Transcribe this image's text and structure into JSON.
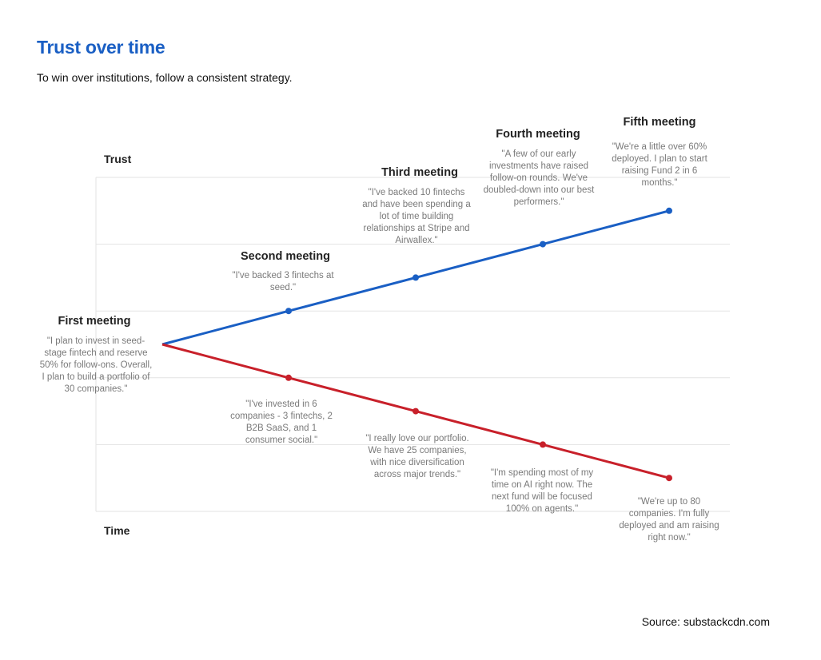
{
  "title": "Trust over time",
  "subtitle": "To win over institutions, follow a consistent strategy.",
  "axes": {
    "y_label": "Trust",
    "x_label": "Time"
  },
  "start_point": {
    "title": "First meeting",
    "quote": "\"I plan to invest in seed-stage fintech and reserve 50% for follow-ons. Overall, I plan to build a portfolio of 30 companies.\""
  },
  "meetings": [
    {
      "title": "Second meeting",
      "good_quote": "\"I've backed 3 fintechs at seed.\"",
      "bad_quote": "\"I've invested in 6 companies - 3 fintechs, 2 B2B SaaS, and 1 consumer social.\""
    },
    {
      "title": "Third meeting",
      "good_quote": "\"I've backed 10 fintechs and have been spending a lot of time building relationships at Stripe and Airwallex.\"",
      "bad_quote": "\"I really love our portfolio. We have 25 companies, with nice diversification across major trends.\""
    },
    {
      "title": "Fourth meeting",
      "good_quote": "\"A few of our early investments have raised follow-on rounds. We've doubled-down into our best performers.\"",
      "bad_quote": "\"I'm spending most of my time on AI right now. The next fund will be focused 100% on agents.\""
    },
    {
      "title": "Fifth meeting",
      "good_quote": "\"We're a little over 60% deployed. I plan to start raising Fund 2 in 6 months.\"",
      "bad_quote": "\"We're up to 80 companies. I'm fully deployed and am raising right now.\""
    }
  ],
  "colors": {
    "title": "#1a5fc4",
    "consistent_line": "#1a5fc4",
    "inconsistent_line": "#c8202a",
    "grid": "#e3e3e3"
  },
  "chart_data": {
    "type": "line",
    "categories": [
      "First meeting",
      "Second meeting",
      "Third meeting",
      "Fourth meeting",
      "Fifth meeting"
    ],
    "series": [
      {
        "values": [
          0,
          1,
          2,
          3,
          4
        ]
      },
      {
        "values": [
          0,
          -1,
          -2,
          -3,
          -4
        ]
      }
    ],
    "ylim": [
      -5,
      5
    ],
    "grid": true
  },
  "source": "Source: substackcdn.com"
}
